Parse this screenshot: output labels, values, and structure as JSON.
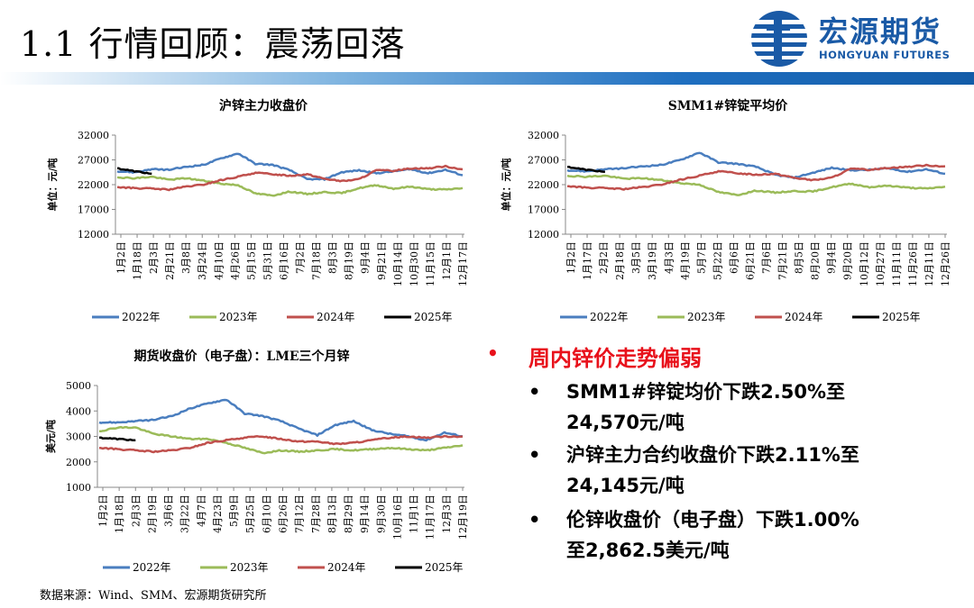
{
  "header": {
    "title": "1.1 行情回顾：震荡回落",
    "logo_cn": "宏源期货",
    "logo_en": "HONGYUAN FUTURES",
    "logo_icon": "hongyuan-globe-icon",
    "accent_color": "#1a5aa6"
  },
  "charts": [
    {
      "id": "shfe",
      "title": "沪锌主力收盘价",
      "ylabel": "单位：元/吨",
      "yticks": [
        "32000",
        "27000",
        "22000",
        "17000",
        "12000"
      ],
      "xticks": [
        "1月2日",
        "1月18日",
        "2月3日",
        "2月21日",
        "3月8日",
        "3月24日",
        "4月10日",
        "4月26日",
        "5月15日",
        "5月31日",
        "6月16日",
        "7月2日",
        "7月18日",
        "8月3日",
        "8月19日",
        "9月4日",
        "9月21日",
        "10月14日",
        "10月30日",
        "11月15日",
        "12月1日",
        "12月17日"
      ],
      "legend": [
        "2022年",
        "2023年",
        "2024年",
        "2025年"
      ]
    },
    {
      "id": "smm",
      "title": "SMM1#锌锭平均价",
      "ylabel": "单位：元/吨",
      "yticks": [
        "32000",
        "27000",
        "22000",
        "17000",
        "12000"
      ],
      "xticks": [
        "1月2日",
        "1月17日",
        "2月2日",
        "2月18日",
        "3月5日",
        "3月19日",
        "4月3日",
        "4月19日",
        "5月7日",
        "5月22日",
        "6月6日",
        "6月21日",
        "7月6日",
        "7月21日",
        "8月5日",
        "8月20日",
        "9月4日",
        "9月20日",
        "10月12日",
        "10月27日",
        "11月11日",
        "11月26日",
        "12月11日",
        "12月26日"
      ],
      "legend": [
        "2022年",
        "2023年",
        "2024年",
        "2025年"
      ]
    },
    {
      "id": "lme",
      "title": "期货收盘价（电子盘）：LME三个月锌",
      "ylabel": "美元/吨",
      "yticks": [
        "5000",
        "4000",
        "3000",
        "2000",
        "1000"
      ],
      "xticks": [
        "1月2日",
        "1月18日",
        "2月3日",
        "2月19日",
        "3月6日",
        "3月22日",
        "4月7日",
        "4月23日",
        "5月9日",
        "5月25日",
        "6月10日",
        "6月26日",
        "7月12日",
        "7月28日",
        "8月13日",
        "8月29日",
        "9月14日",
        "9月30日",
        "10月16日",
        "11月1日",
        "11月17日",
        "12月3日",
        "12月19日"
      ],
      "legend": [
        "2022年",
        "2023年",
        "2024年",
        "2025年"
      ]
    }
  ],
  "series_colors": [
    "#4a7ebf",
    "#9bbb59",
    "#c0504d",
    "#000000"
  ],
  "chart_data": [
    {
      "type": "line",
      "title": "沪锌主力收盘价",
      "ylabel": "单位：元/吨",
      "ylim": [
        12000,
        32000
      ],
      "x_fraction_of_year": [
        0,
        0.05,
        0.1,
        0.15,
        0.2,
        0.25,
        0.3,
        0.35,
        0.4,
        0.45,
        0.5,
        0.55,
        0.6,
        0.65,
        0.7,
        0.75,
        0.8,
        0.85,
        0.9,
        0.95,
        1.0
      ],
      "series": [
        {
          "name": "2022年",
          "values": [
            24700,
            24500,
            25100,
            25000,
            25600,
            26000,
            27300,
            28300,
            26200,
            26000,
            24900,
            23100,
            23100,
            24500,
            24900,
            24300,
            24700,
            25100,
            24300,
            25000,
            23900
          ]
        },
        {
          "name": "2023年",
          "values": [
            23500,
            23300,
            23600,
            23000,
            23300,
            22800,
            22200,
            21900,
            20200,
            19800,
            20600,
            20100,
            20500,
            20300,
            21300,
            21900,
            21200,
            21600,
            21100,
            21000,
            21300
          ]
        },
        {
          "name": "2024年",
          "values": [
            21500,
            21300,
            21200,
            21000,
            21600,
            22000,
            22900,
            23600,
            24400,
            24100,
            23800,
            24100,
            23200,
            22700,
            23100,
            24900,
            24800,
            25300,
            25300,
            25700,
            25100
          ]
        },
        {
          "name": "2025年",
          "values": [
            25300,
            24700,
            24200
          ]
        }
      ]
    },
    {
      "type": "line",
      "title": "SMM1#锌锭平均价",
      "ylabel": "单位：元/吨",
      "ylim": [
        12000,
        32000
      ],
      "x_fraction_of_year": [
        0,
        0.05,
        0.1,
        0.15,
        0.2,
        0.25,
        0.3,
        0.35,
        0.4,
        0.45,
        0.5,
        0.55,
        0.6,
        0.65,
        0.7,
        0.75,
        0.8,
        0.85,
        0.9,
        0.95,
        1.0
      ],
      "series": [
        {
          "name": "2022年",
          "values": [
            24900,
            24700,
            25100,
            25300,
            25700,
            26000,
            27000,
            28500,
            26500,
            26200,
            25600,
            24000,
            23400,
            24400,
            25400,
            24900,
            25000,
            25300,
            24600,
            25100,
            24200
          ]
        },
        {
          "name": "2023年",
          "values": [
            23800,
            23600,
            23800,
            23200,
            23300,
            22900,
            22300,
            22000,
            20500,
            19900,
            20800,
            20400,
            20700,
            20600,
            21500,
            22200,
            21500,
            21800,
            21400,
            21200,
            21600
          ]
        },
        {
          "name": "2024年",
          "values": [
            21700,
            21400,
            21300,
            21100,
            21500,
            22000,
            23000,
            23800,
            24700,
            24300,
            24000,
            24200,
            23400,
            22900,
            23400,
            25200,
            25000,
            25400,
            25600,
            25900,
            25700
          ]
        },
        {
          "name": "2025年",
          "values": [
            25600,
            25000,
            24600
          ]
        }
      ]
    },
    {
      "type": "line",
      "title": "期货收盘价（电子盘）：LME三个月锌",
      "ylabel": "美元/吨",
      "ylim": [
        1000,
        5000
      ],
      "x_fraction_of_year": [
        0,
        0.05,
        0.1,
        0.15,
        0.2,
        0.25,
        0.3,
        0.35,
        0.4,
        0.45,
        0.5,
        0.55,
        0.6,
        0.65,
        0.7,
        0.75,
        0.8,
        0.85,
        0.9,
        0.95,
        1.0
      ],
      "series": [
        {
          "name": "2022年",
          "values": [
            3550,
            3550,
            3600,
            3650,
            3800,
            4100,
            4300,
            4450,
            3900,
            3800,
            3600,
            3300,
            3050,
            3450,
            3600,
            3250,
            3100,
            3000,
            2850,
            3150,
            3000
          ]
        },
        {
          "name": "2023年",
          "values": [
            3200,
            3350,
            3350,
            3100,
            3000,
            2900,
            2900,
            2750,
            2550,
            2350,
            2450,
            2400,
            2450,
            2500,
            2450,
            2500,
            2550,
            2500,
            2450,
            2550,
            2650
          ]
        },
        {
          "name": "2024年",
          "values": [
            2550,
            2500,
            2450,
            2400,
            2450,
            2550,
            2750,
            2850,
            2950,
            3000,
            2900,
            2800,
            2800,
            2700,
            2750,
            2850,
            2950,
            3000,
            2950,
            3000,
            3000
          ]
        },
        {
          "name": "2025年",
          "values": [
            2950,
            2900,
            2850
          ]
        }
      ]
    }
  ],
  "bullets": {
    "main": "周内锌价走势偏弱",
    "items": [
      {
        "line1": "SMM1#锌锭均价下跌2.50%至",
        "line2": "24,570元/吨"
      },
      {
        "line1": "沪锌主力合约收盘价下跌2.11%至",
        "line2": "24,145元/吨"
      },
      {
        "line1": "伦锌收盘价（电子盘）下跌1.00%",
        "line2": "至2,862.5美元/吨"
      }
    ]
  },
  "source": "数据来源：Wind、SMM、宏源期货研究所"
}
